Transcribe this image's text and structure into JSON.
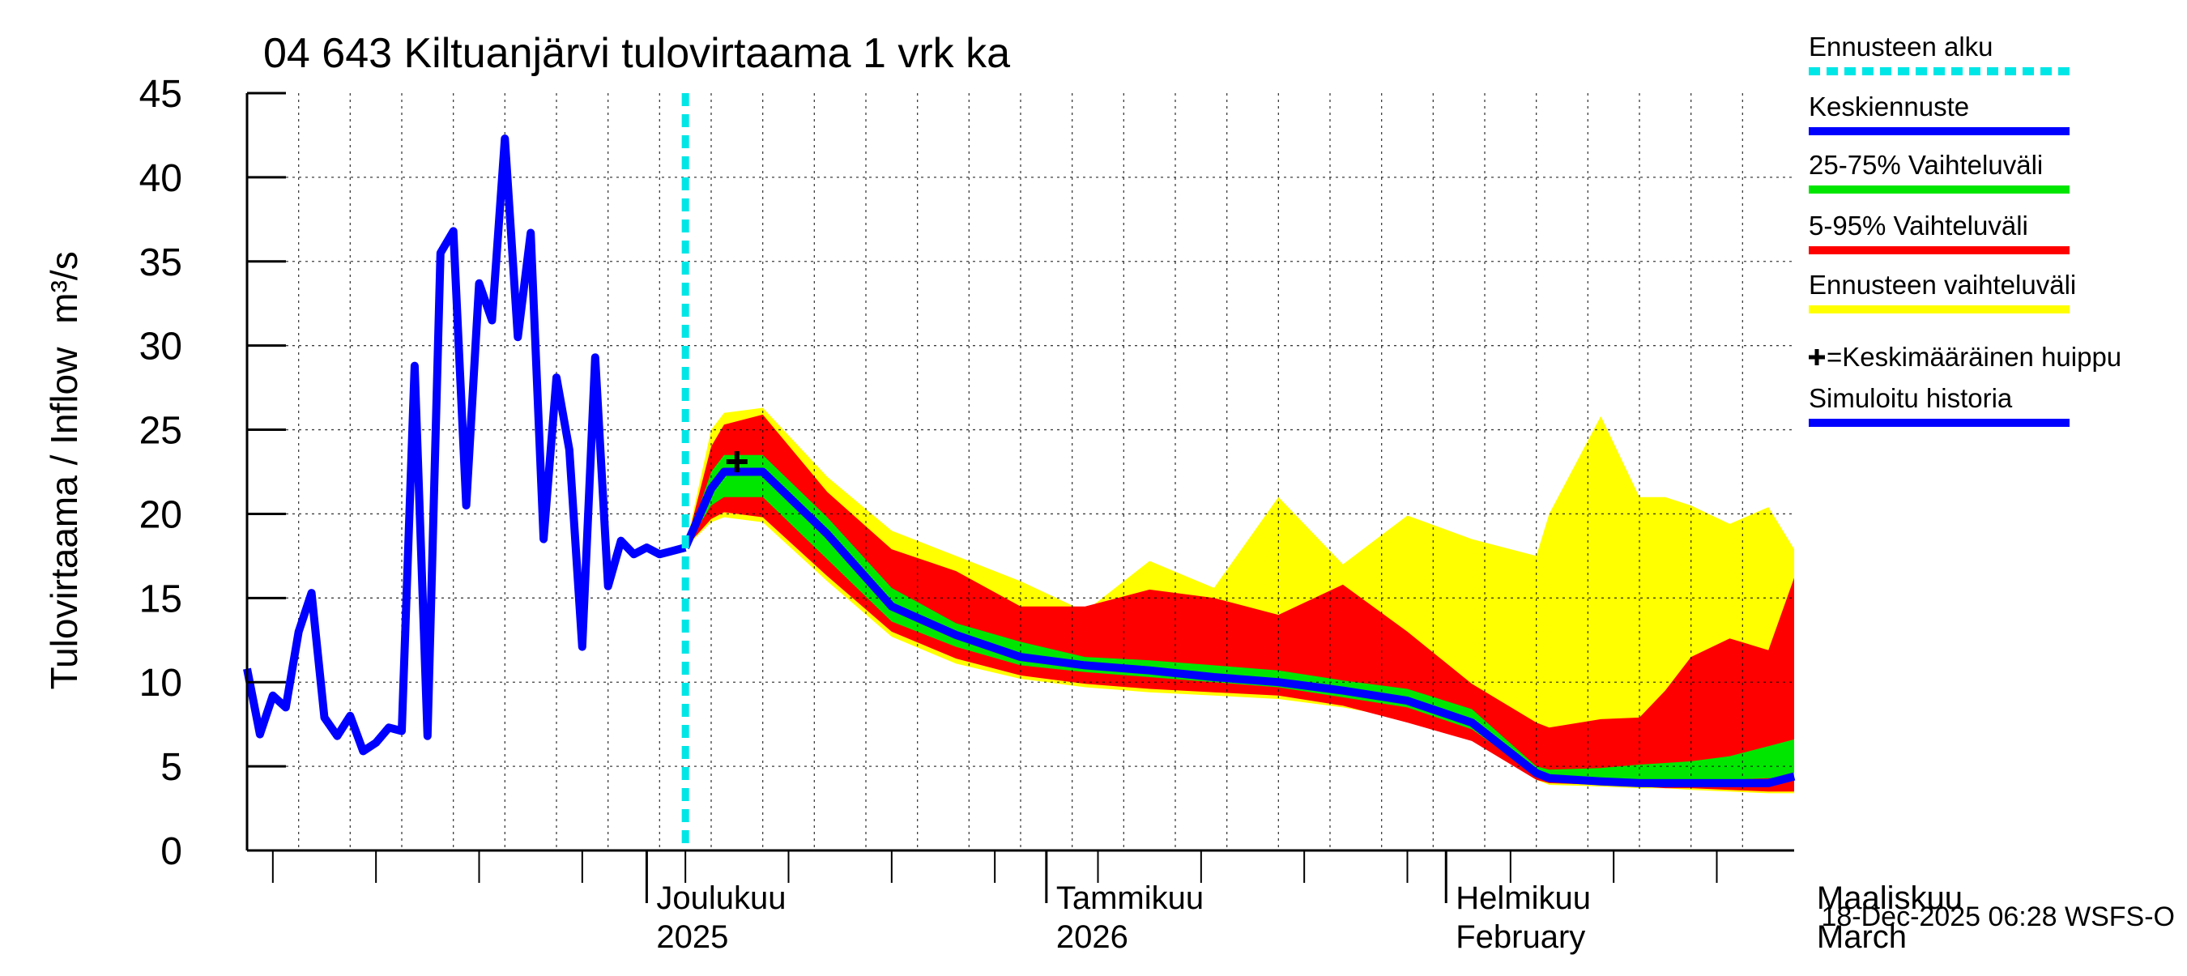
{
  "chart_data": {
    "type": "area",
    "title": "04 643 Kiltuanjärvi tulovirtaama 1 vrk ka",
    "ylabel": "Tulovirtaama / Inflow",
    "yunit": "m³/s",
    "ylim": [
      0,
      45
    ],
    "yticks": [
      "0",
      "5",
      "10",
      "15",
      "20",
      "25",
      "30",
      "35",
      "40",
      "45"
    ],
    "grid": true,
    "xlim_days": [
      0,
      120
    ],
    "x_note": "x = days from 2025-11-14",
    "month_ticks": [
      {
        "day": 31,
        "line1": "Joulukuu",
        "line2": "2025"
      },
      {
        "day": 62,
        "line1": "Tammikuu",
        "line2": "2026"
      },
      {
        "day": 93,
        "line1": "Helmikuu",
        "line2": "February"
      },
      {
        "day": 121,
        "line1": "Maaliskuu",
        "line2": "March"
      }
    ],
    "forecast_start_day": 34,
    "footer": "18-Dec-2025 06:28 WSFS-O",
    "legend": [
      {
        "label": "Ennusteen alku",
        "color": "#00e6e6",
        "style": "dashed"
      },
      {
        "label": "Keskiennuste",
        "color": "#0000ff",
        "style": "line"
      },
      {
        "label": "25-75% Vaihteluväli",
        "color": "#00e600",
        "style": "line"
      },
      {
        "label": "5-95% Vaihteluväli",
        "color": "#ff0000",
        "style": "line"
      },
      {
        "label": "Ennusteen vaihteluväli",
        "color": "#ffff00",
        "style": "line"
      },
      {
        "label": "=Keskimääräinen huippu",
        "color": "#000000",
        "style": "plus"
      },
      {
        "label": "Simuloitu historia",
        "color": "#0000ff",
        "style": "line"
      }
    ],
    "history": {
      "name": "Simuloitu historia",
      "color": "#0000ff",
      "x": [
        0,
        1,
        2,
        3,
        4,
        5,
        6,
        7,
        8,
        9,
        10,
        11,
        12,
        13,
        14,
        15,
        16,
        17,
        18,
        19,
        20,
        21,
        22,
        23,
        24,
        25,
        26,
        27,
        28,
        29,
        30,
        31,
        32,
        33,
        34
      ],
      "y": [
        10.8,
        6.9,
        9.2,
        8.5,
        13.0,
        15.3,
        7.9,
        6.8,
        8.0,
        5.9,
        6.4,
        7.3,
        7.1,
        28.8,
        6.8,
        35.5,
        36.8,
        20.5,
        33.7,
        31.5,
        42.3,
        30.5,
        36.7,
        18.5,
        28.1,
        23.8,
        12.1,
        29.3,
        15.7,
        18.4,
        17.6,
        18.0,
        17.6,
        17.8,
        18.0
      ]
    },
    "forecast": {
      "x": [
        34,
        36,
        37,
        40,
        45,
        50,
        55,
        60,
        65,
        70,
        75,
        80,
        85,
        90,
        95,
        100,
        101,
        105,
        108,
        110,
        112,
        115,
        118,
        120
      ],
      "min": [
        18.0,
        19.5,
        19.8,
        19.5,
        16.0,
        12.7,
        11.1,
        10.2,
        9.7,
        9.4,
        9.2,
        9.0,
        8.5,
        7.8,
        6.8,
        4.2,
        3.9,
        3.8,
        3.7,
        3.7,
        3.6,
        3.5,
        3.4,
        3.4
      ],
      "p5": [
        18.0,
        19.7,
        20.1,
        19.8,
        16.3,
        13.0,
        11.4,
        10.4,
        9.9,
        9.6,
        9.4,
        9.2,
        8.6,
        7.6,
        6.5,
        4.2,
        4.0,
        3.9,
        3.8,
        3.7,
        3.7,
        3.6,
        3.5,
        3.5
      ],
      "p25": [
        18.0,
        20.5,
        21.0,
        21.0,
        17.3,
        13.6,
        12.1,
        11.0,
        10.6,
        10.3,
        10.0,
        9.7,
        9.1,
        8.5,
        7.2,
        4.5,
        4.2,
        4.1,
        4.1,
        4.1,
        4.1,
        4.2,
        4.3,
        4.3
      ],
      "median": [
        18.0,
        21.5,
        22.5,
        22.5,
        18.8,
        14.5,
        12.8,
        11.5,
        11.0,
        10.7,
        10.3,
        10.0,
        9.5,
        8.9,
        7.6,
        4.6,
        4.3,
        4.1,
        4.0,
        4.0,
        4.0,
        4.0,
        4.0,
        4.4
      ],
      "p75": [
        18.0,
        22.5,
        23.5,
        23.5,
        19.8,
        15.6,
        13.5,
        12.4,
        11.5,
        11.3,
        11.0,
        10.7,
        10.1,
        9.6,
        8.4,
        5.0,
        4.8,
        4.9,
        5.1,
        5.2,
        5.3,
        5.6,
        6.2,
        6.6
      ],
      "p95": [
        18.0,
        24.0,
        25.3,
        25.9,
        21.3,
        17.9,
        16.6,
        14.5,
        14.5,
        15.5,
        15.0,
        14.0,
        15.8,
        13.0,
        9.9,
        7.6,
        7.3,
        7.8,
        7.9,
        9.5,
        11.5,
        12.6,
        11.9,
        16.2
      ],
      "max": [
        18.0,
        25.0,
        26.0,
        26.3,
        22.2,
        19.0,
        17.5,
        16.0,
        14.2,
        17.2,
        15.6,
        21.0,
        17.0,
        19.9,
        18.5,
        17.5,
        20.0,
        25.8,
        21.0,
        21.0,
        20.5,
        19.4,
        20.4,
        17.9
      ]
    },
    "mean_peak": {
      "day": 38,
      "value": 23.1,
      "marker": "+"
    }
  }
}
